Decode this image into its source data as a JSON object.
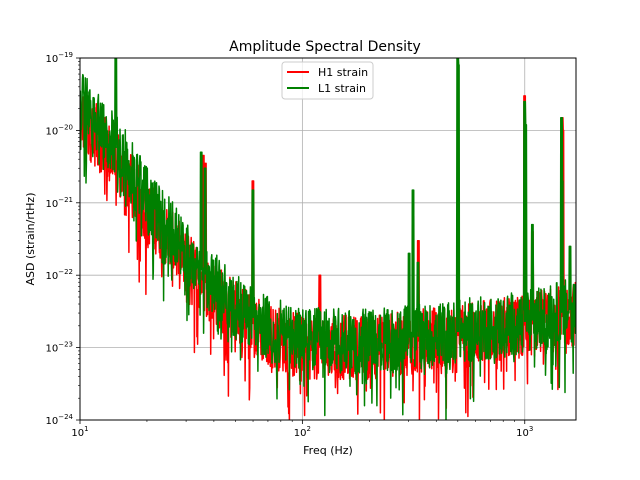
{
  "chart_data": {
    "type": "line",
    "title": "Amplitude Spectral Density",
    "xlabel": "Freq (Hz)",
    "ylabel": "ASD (strain/rtHz)",
    "x_scale": "log",
    "y_scale": "log",
    "xlim": [
      10,
      1700
    ],
    "ylim": [
      1e-24,
      1e-19
    ],
    "x_ticks": [
      {
        "value": 10,
        "base": "10",
        "exp": "1"
      },
      {
        "value": 100,
        "base": "10",
        "exp": "2"
      },
      {
        "value": 1000,
        "base": "10",
        "exp": "3"
      }
    ],
    "y_ticks": [
      {
        "value": 1e-24,
        "base": "10",
        "exp": "−24"
      },
      {
        "value": 1e-23,
        "base": "10",
        "exp": "−23"
      },
      {
        "value": 1e-22,
        "base": "10",
        "exp": "−22"
      },
      {
        "value": 1e-21,
        "base": "10",
        "exp": "−21"
      },
      {
        "value": 1e-20,
        "base": "10",
        "exp": "−20"
      },
      {
        "value": 1e-19,
        "base": "10",
        "exp": "−19"
      }
    ],
    "grid": true,
    "legend": {
      "position": "top-center"
    },
    "series": [
      {
        "name": "H1 strain",
        "color": "#ff0000",
        "floor": [
          [
            10,
            1.5e-20
          ],
          [
            12,
            8e-21
          ],
          [
            15,
            3e-21
          ],
          [
            20,
            8e-22
          ],
          [
            30,
            1.5e-22
          ],
          [
            45,
            4e-23
          ],
          [
            70,
            1.5e-23
          ],
          [
            100,
            1e-23
          ],
          [
            200,
            1e-23
          ],
          [
            400,
            1.3e-23
          ],
          [
            800,
            1.8e-23
          ],
          [
            1200,
            2.2e-23
          ],
          [
            1700,
            3e-23
          ]
        ],
        "lines": [
          [
            35.9,
            4.5e-21
          ],
          [
            36.7,
            3.5e-21
          ],
          [
            60,
            2e-21
          ],
          [
            120,
            1e-22
          ],
          [
            331.9,
            3e-22
          ],
          [
            500,
            1e-22
          ],
          [
            1000,
            3e-20
          ],
          [
            1083,
            4e-22
          ],
          [
            1473,
            1.5e-20
          ],
          [
            1485,
            1e-20
          ]
        ]
      },
      {
        "name": "L1 strain",
        "color": "#008000",
        "floor": [
          [
            10,
            2.5e-20
          ],
          [
            12,
            1.2e-20
          ],
          [
            15,
            5e-21
          ],
          [
            20,
            1.2e-21
          ],
          [
            30,
            2e-22
          ],
          [
            45,
            5e-23
          ],
          [
            70,
            1.8e-23
          ],
          [
            100,
            1.3e-23
          ],
          [
            200,
            1.2e-23
          ],
          [
            400,
            1.5e-23
          ],
          [
            800,
            2e-23
          ],
          [
            1200,
            2.5e-23
          ],
          [
            1700,
            3.5e-23
          ]
        ],
        "lines": [
          [
            14.5,
            1e-19
          ],
          [
            35.1,
            5e-21
          ],
          [
            36.5,
            3e-21
          ],
          [
            60,
            1.5e-21
          ],
          [
            302,
            2e-22
          ],
          [
            315,
            1.5e-21
          ],
          [
            331.3,
            1.5e-22
          ],
          [
            500,
            1e-19
          ],
          [
            503,
            8e-20
          ],
          [
            1000,
            2.5e-20
          ],
          [
            1008,
            1.2e-20
          ],
          [
            1083,
            5e-22
          ],
          [
            1460,
            1.5e-20
          ],
          [
            1476,
            2e-21
          ],
          [
            1600,
            2.5e-22
          ]
        ]
      }
    ]
  }
}
